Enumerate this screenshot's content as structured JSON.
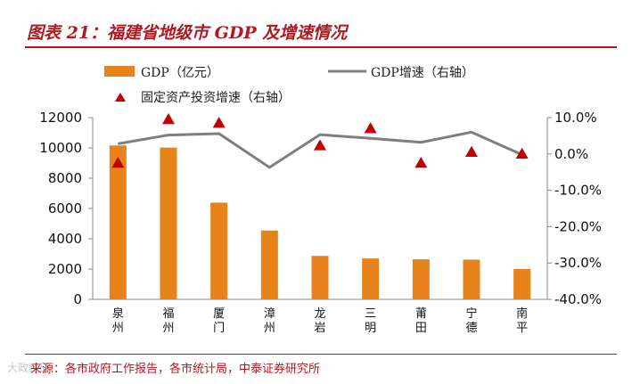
{
  "header": {
    "title": "图表 21：福建省地级市 GDP 及增速情况"
  },
  "footer": {
    "source": "来源：各市政府工作报告，各市统计局，中泰证券研究所",
    "watermark": "大政经研"
  },
  "colors": {
    "bar": "#e8821a",
    "line": "#7f7f7f",
    "marker": "#c00000",
    "accent": "#b01a1f"
  },
  "chart_data": {
    "type": "bar",
    "categories": [
      "泉州",
      "福州",
      "厦门",
      "漳州",
      "龙岩",
      "三明",
      "莆田",
      "宁德",
      "南平"
    ],
    "series": [
      {
        "name": "GDP（亿元）",
        "type": "bar",
        "axis": "left",
        "values": [
          10158,
          10020,
          6384,
          4546,
          2871,
          2702,
          2644,
          2619,
          2008
        ]
      },
      {
        "name": "GDP增速（右轴）",
        "type": "line",
        "axis": "right",
        "values": [
          2.8,
          5.2,
          5.6,
          -3.7,
          5.3,
          4.3,
          3.2,
          6.0,
          -0.2
        ]
      },
      {
        "name": "固定资产投资增速（右轴）",
        "type": "scatter",
        "axis": "right",
        "values": [
          -2.5,
          9.5,
          8.5,
          null,
          2.3,
          7.0,
          -2.5,
          0.5,
          0.0
        ]
      }
    ],
    "y_left": {
      "min": 0,
      "max": 12000,
      "ticks": [
        "0",
        "2000",
        "4000",
        "6000",
        "8000",
        "10000",
        "12000"
      ]
    },
    "y_right": {
      "min": -40,
      "max": 10,
      "ticks": [
        "-40.0%",
        "-30.0%",
        "-20.0%",
        "-10.0%",
        "0.0%",
        "10.0%"
      ]
    },
    "legend": [
      "GDP（亿元）",
      "GDP增速（右轴）",
      "固定资产投资增速（右轴）"
    ]
  }
}
